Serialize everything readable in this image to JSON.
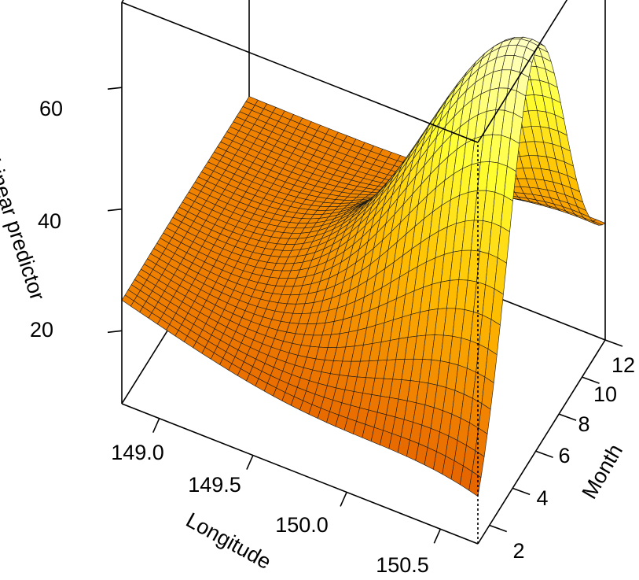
{
  "chart_data": {
    "type": "surface3d",
    "title": "",
    "x_axis": {
      "label": "Longitude",
      "range": [
        148.8,
        150.7
      ],
      "ticks": [
        "149.0",
        "149.5",
        "150.0",
        "150.5"
      ]
    },
    "y_axis": {
      "label": "Month",
      "range": [
        1,
        12
      ],
      "ticks": [
        "2",
        "4",
        "6",
        "8",
        "10",
        "12"
      ]
    },
    "z_axis": {
      "label": "Linear predictor",
      "range": [
        8,
        74
      ],
      "ticks": [
        "20",
        "40",
        "60"
      ]
    },
    "colormap": [
      "#d94500",
      "#f08000",
      "#ffc000",
      "#ffff30",
      "#ffffc0"
    ],
    "grid_lines": 40,
    "box": "full",
    "surface_corner_values": {
      "lon_min_month_1": 25,
      "lon_min_month_12": 25,
      "lon_max_month_1": 8,
      "lon_max_month_12": 24,
      "peak_value": 74,
      "peak_longitude": 150.68,
      "peak_month": 6
    }
  }
}
